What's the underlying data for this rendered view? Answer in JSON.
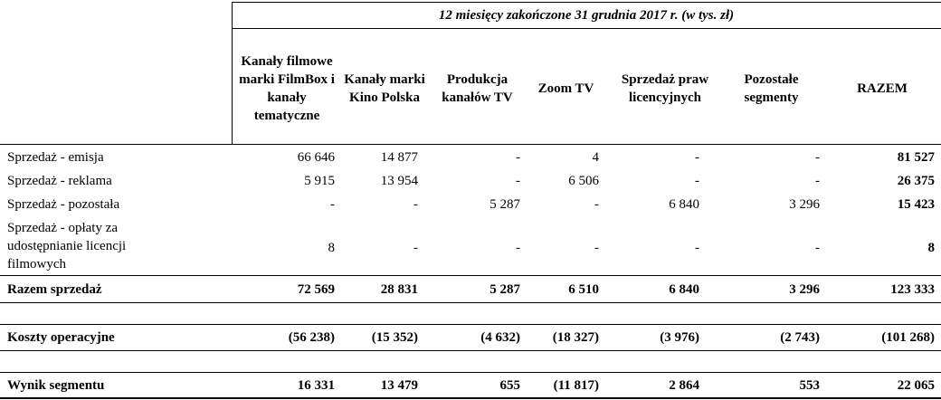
{
  "title": "12 miesięcy zakończone 31 grudnia 2017 r. (w tys. zł)",
  "columns": [
    "Kanały filmowe marki FilmBox i kanały tematyczne",
    "Kanały marki Kino Polska",
    "Produkcja kanałów TV",
    "Zoom TV",
    "Sprzedaż praw licencyjnych",
    "Pozostałe segmenty",
    "RAZEM"
  ],
  "rows": [
    {
      "label": "Sprzedaż - emisja",
      "values": [
        "66 646",
        "14 877",
        "-",
        "4",
        "-",
        "-",
        "81 527"
      ],
      "bold": false
    },
    {
      "label": "Sprzedaż - reklama",
      "values": [
        "5 915",
        "13 954",
        "-",
        "6 506",
        "-",
        "-",
        "26 375"
      ],
      "bold": false
    },
    {
      "label": "Sprzedaż - pozostała",
      "values": [
        "-",
        "-",
        "5 287",
        "-",
        "6 840",
        "3 296",
        "15 423"
      ],
      "bold": false
    },
    {
      "label": "Sprzedaż - opłaty za udostępnianie licencji filmowych",
      "values": [
        "8",
        "-",
        "-",
        "-",
        "-",
        "-",
        "8"
      ],
      "bold": false
    },
    {
      "label": "Razem sprzedaż",
      "values": [
        "72 569",
        "28 831",
        "5 287",
        "6 510",
        "6 840",
        "3 296",
        "123 333"
      ],
      "bold": true
    },
    {
      "label": "Koszty operacyjne",
      "values": [
        "(56 238)",
        "(15 352)",
        "(4 632)",
        "(18 327)",
        "(3 976)",
        "(2 743)",
        "(101 268)"
      ],
      "bold": true
    },
    {
      "label": "Wynik segmentu",
      "values": [
        "16 331",
        "13 479",
        "655",
        "(11 817)",
        "2 864",
        "553",
        "22 065"
      ],
      "bold": true
    }
  ]
}
